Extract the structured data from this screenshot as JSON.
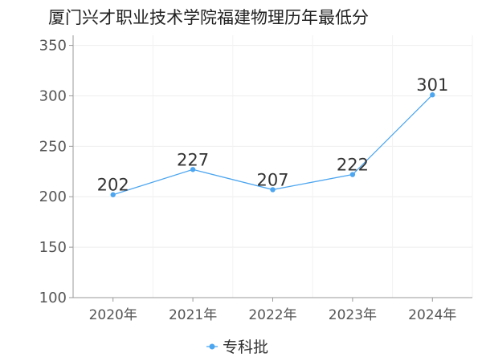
{
  "chart_data": {
    "type": "line",
    "title": "厦门兴才职业技术学院福建物理历年最低分",
    "categories": [
      "2020年",
      "2021年",
      "2022年",
      "2023年",
      "2024年"
    ],
    "series": [
      {
        "name": "专科批",
        "values": [
          202,
          227,
          207,
          222,
          301
        ],
        "color": "#4da6f0"
      }
    ],
    "ylim": [
      100,
      360
    ],
    "yticks": [
      "100",
      "150",
      "200",
      "250",
      "300",
      "350"
    ],
    "grid": true,
    "legend": "bottom-center",
    "xlabel": "",
    "ylabel": ""
  }
}
